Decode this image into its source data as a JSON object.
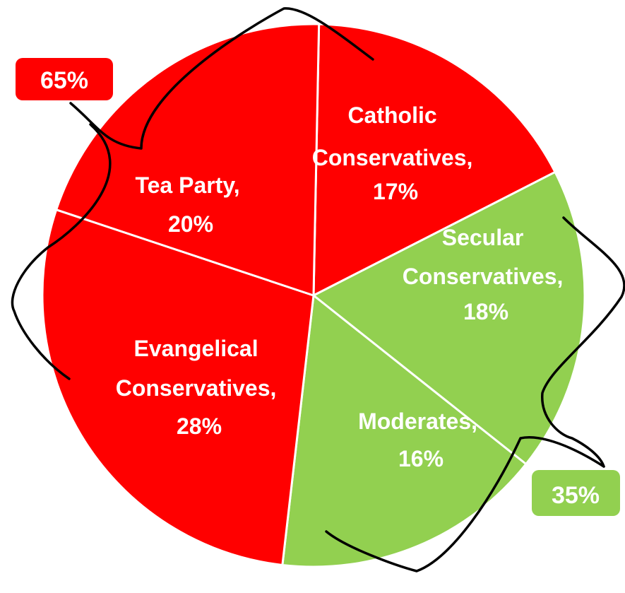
{
  "chart_data": {
    "type": "pie",
    "slices": [
      {
        "name": "Catholic Conservatives",
        "value": 17,
        "label": "17%",
        "color": "#ff0000"
      },
      {
        "name": "Secular Conservatives",
        "value": 18,
        "label": "18%",
        "color": "#92d050"
      },
      {
        "name": "Moderates",
        "value": 16,
        "label": "16%",
        "color": "#92d050"
      },
      {
        "name": "Evangelical Conservatives",
        "value": 28,
        "label": "28%",
        "color": "#ff0000"
      },
      {
        "name": "Tea Party",
        "value": 20,
        "label": "20%",
        "color": "#ff0000"
      }
    ],
    "groups": [
      {
        "label": "65%",
        "color": "#ff0000",
        "members": [
          "Tea Party",
          "Catholic Conservatives",
          "Evangelical Conservatives"
        ]
      },
      {
        "label": "35%",
        "color": "#92d050",
        "members": [
          "Secular Conservatives",
          "Moderates"
        ]
      }
    ]
  }
}
